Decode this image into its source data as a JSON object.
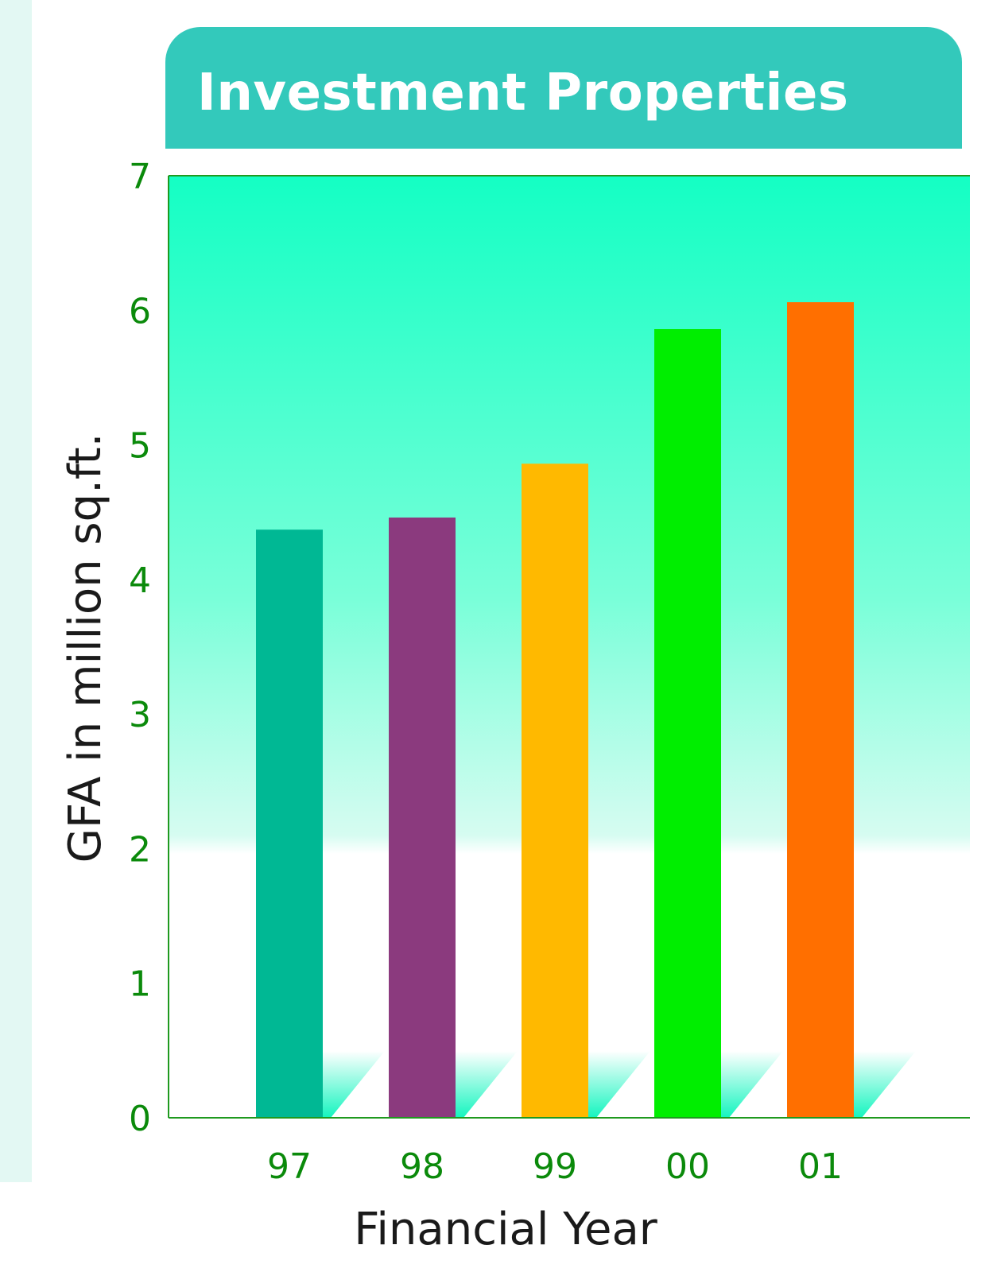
{
  "chart_data": {
    "type": "bar",
    "title": "Investment Properties",
    "xlabel": "Financial Year",
    "ylabel": "GFA in million sq.ft.",
    "categories": [
      "97",
      "98",
      "99",
      "00",
      "01"
    ],
    "values": [
      4.37,
      4.46,
      4.86,
      5.86,
      6.06
    ],
    "bar_colors": [
      "#00b894",
      "#8b3a7e",
      "#ffb900",
      "#00ee00",
      "#ff6f00"
    ],
    "ylim": [
      0,
      7
    ],
    "yticks": [
      "0",
      "1",
      "2",
      "3",
      "4",
      "5",
      "6",
      "7"
    ],
    "grid": false,
    "legend": "none",
    "background": "gradient teal-to-white",
    "colors": {
      "banner": "#33c9bb",
      "axis": "#1f9a1f",
      "tick_text": "#0b8a0b"
    }
  }
}
